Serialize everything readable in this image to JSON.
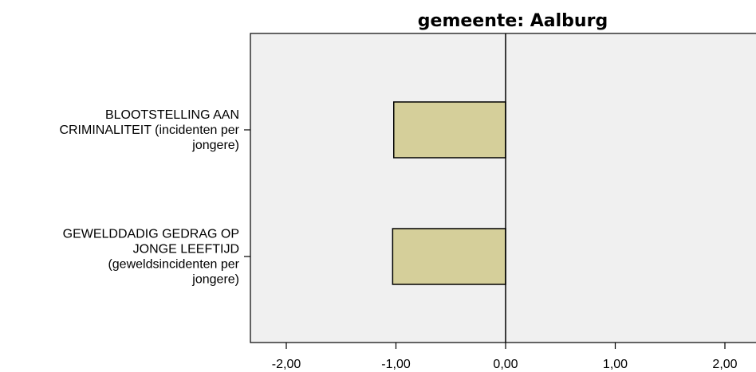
{
  "chart_data": {
    "type": "bar",
    "orientation": "horizontal",
    "title": "gemeente: Aalburg",
    "categories": [
      [
        "BLOOTSTELLING AAN",
        "CRIMINALITEIT (incidenten per",
        "jongere)"
      ],
      [
        "GEWELDDADIG GEDRAG OP",
        "JONGE LEEFTIJD",
        "(geweldsincidenten per",
        "jongere)"
      ]
    ],
    "values": [
      -1.02,
      -1.03
    ],
    "xlim": [
      -2.3,
      2.3
    ],
    "xticks": [
      -2,
      -1,
      0,
      1,
      2
    ],
    "xtick_labels": [
      "-2,00",
      "-1,00",
      "0,00",
      "1,00",
      "2,00"
    ],
    "xlabel": "",
    "ylabel": "",
    "grid": false,
    "colors": {
      "bar_fill": "#d5cf9a",
      "bar_stroke": "#000000",
      "plot_background": "#f0f0f0",
      "zero_line": "#000000"
    }
  }
}
